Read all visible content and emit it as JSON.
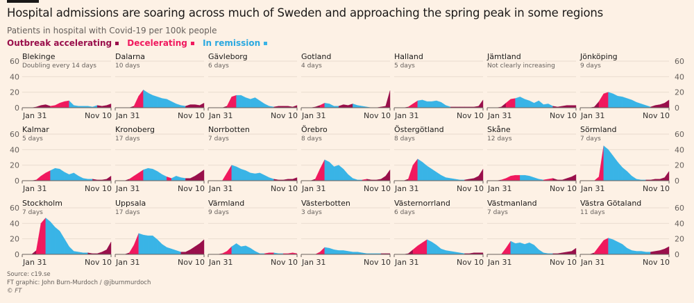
{
  "title": "Hospital admissions are soaring across much of Sweden and approaching the spring peak in some regions",
  "subtitle": "Patients in hospital with Covid-19 per 100k people",
  "legend": [
    {
      "label": "Outbreak accelerating",
      "key": "a",
      "color": "#990f4b"
    },
    {
      "label": "Decelerating",
      "key": "d",
      "color": "#f0195e"
    },
    {
      "label": "In remission",
      "key": "r",
      "color": "#39b4e6"
    }
  ],
  "footer": {
    "source": "Source: c19.se",
    "credit": "FT graphic: John Burn-Murdoch / @jburnmurdoch",
    "copyright": "© FT"
  },
  "chart_data": {
    "type": "area",
    "small_multiples": true,
    "ylim": [
      0,
      60
    ],
    "yticks": [
      "0",
      "20",
      "40",
      "60"
    ],
    "xtick_labels": [
      "Jan 31",
      "Nov 10"
    ],
    "dates": [
      "2020-01-31",
      "2020-02-15",
      "2020-03-01",
      "2020-03-16",
      "2020-03-31",
      "2020-04-15",
      "2020-04-30",
      "2020-05-15",
      "2020-05-30",
      "2020-06-14",
      "2020-06-29",
      "2020-07-14",
      "2020-07-29",
      "2020-08-13",
      "2020-08-28",
      "2020-09-12",
      "2020-09-27",
      "2020-10-12",
      "2020-10-27",
      "2020-11-10"
    ],
    "grid": true,
    "phase_key": {
      "a": "Outbreak accelerating",
      "d": "Decelerating",
      "r": "In remission"
    },
    "panels": [
      {
        "name": "Blekinge",
        "note": "Doubling every 14 days",
        "values": [
          0,
          0,
          0,
          1,
          3,
          4,
          2,
          3,
          6,
          8,
          9,
          3,
          2,
          2,
          2,
          1,
          3,
          2,
          3,
          5
        ],
        "phases": "aaaaaaaddddrrrrrraaa"
      },
      {
        "name": "Dalarna",
        "note": "10 days",
        "values": [
          0,
          0,
          0,
          0,
          2,
          15,
          23,
          19,
          16,
          14,
          12,
          11,
          8,
          5,
          3,
          2,
          4,
          4,
          3,
          6
        ],
        "phases": "aaaaaddrrrrrrrrraaaa"
      },
      {
        "name": "Gävleborg",
        "note": "6 days",
        "values": [
          0,
          0,
          0,
          0,
          2,
          14,
          16,
          16,
          13,
          11,
          13,
          9,
          5,
          2,
          1,
          2,
          2,
          2,
          1,
          3
        ],
        "phases": "aaaaaddrrrrrrrraaaaa"
      },
      {
        "name": "Gotland",
        "note": "4 days",
        "values": [
          0,
          0,
          0,
          1,
          3,
          6,
          5,
          2,
          2,
          4,
          3,
          5,
          3,
          2,
          1,
          0,
          0,
          1,
          2,
          22
        ],
        "phases": "aaaaadrrraaarrrraaaa"
      },
      {
        "name": "Halland",
        "note": "5 days",
        "values": [
          0,
          0,
          0,
          1,
          5,
          9,
          10,
          8,
          8,
          9,
          7,
          3,
          1,
          1,
          1,
          1,
          1,
          1,
          2,
          10
        ],
        "phases": "aaaaddrrrrrrraaaaaaa"
      },
      {
        "name": "Jämtland",
        "note": "Not clearly increasing",
        "values": [
          0,
          0,
          0,
          1,
          6,
          11,
          12,
          14,
          11,
          9,
          6,
          9,
          4,
          5,
          2,
          1,
          2,
          3,
          3,
          3
        ],
        "phases": "aaaaaddrrrrrrrraaaaa"
      },
      {
        "name": "Jönköping",
        "note": "9 days",
        "values": [
          0,
          0,
          0,
          1,
          8,
          18,
          20,
          18,
          15,
          14,
          12,
          10,
          7,
          5,
          3,
          1,
          3,
          4,
          6,
          10
        ],
        "phases": "aaaaaddrrrrrrrrraaaa"
      },
      {
        "name": "Kalmar",
        "note": "5 days",
        "values": [
          0,
          0,
          0,
          1,
          6,
          10,
          13,
          16,
          15,
          11,
          8,
          10,
          6,
          3,
          2,
          2,
          1,
          1,
          2,
          6
        ],
        "phases": "aaaadddrrrrrrrrraaaa"
      },
      {
        "name": "Kronoberg",
        "note": "17 days",
        "values": [
          0,
          0,
          0,
          2,
          6,
          10,
          14,
          16,
          15,
          12,
          8,
          5,
          3,
          6,
          4,
          3,
          3,
          6,
          10,
          14
        ],
        "phases": "aaaadddrrrrrdrrraaaa"
      },
      {
        "name": "Norrbotten",
        "note": "7 days",
        "values": [
          0,
          0,
          0,
          0,
          10,
          20,
          18,
          15,
          13,
          10,
          9,
          10,
          7,
          4,
          2,
          1,
          1,
          2,
          2,
          4
        ],
        "phases": "aaaaddrrrrrrrrraaaaa"
      },
      {
        "name": "Örebro",
        "note": "8 days",
        "values": [
          0,
          0,
          0,
          2,
          15,
          27,
          24,
          18,
          20,
          15,
          8,
          3,
          1,
          1,
          2,
          1,
          1,
          2,
          6,
          14
        ],
        "phases": "aaaaddrrrrrrrrdaaaaa"
      },
      {
        "name": "Östergötland",
        "note": "8 days",
        "values": [
          0,
          0,
          0,
          2,
          20,
          28,
          24,
          19,
          15,
          11,
          7,
          4,
          3,
          2,
          1,
          1,
          2,
          3,
          6,
          15
        ],
        "phases": "aaaaddrrrrrrrrrraaaa"
      },
      {
        "name": "Skåne",
        "note": "12 days",
        "values": [
          0,
          0,
          0,
          1,
          3,
          6,
          7,
          7,
          7,
          6,
          4,
          2,
          1,
          2,
          3,
          1,
          1,
          3,
          5,
          8
        ],
        "phases": "aaaaddddrrrrrddaaaaa"
      },
      {
        "name": "Sörmland",
        "note": "7 days",
        "values": [
          0,
          0,
          0,
          0,
          5,
          45,
          40,
          32,
          24,
          17,
          12,
          6,
          2,
          1,
          1,
          1,
          2,
          2,
          4,
          12
        ],
        "phases": "aaaaddrrrrrrrrraaaaa"
      },
      {
        "name": "Stockholm",
        "note": "7 days",
        "values": [
          0,
          0,
          0,
          5,
          40,
          47,
          42,
          35,
          30,
          20,
          10,
          4,
          3,
          2,
          2,
          1,
          1,
          3,
          6,
          16
        ],
        "phases": "aaaaddrrrrrrrrraaaaa"
      },
      {
        "name": "Uppsala",
        "note": "17 days",
        "values": [
          0,
          0,
          0,
          2,
          12,
          27,
          25,
          24,
          24,
          19,
          13,
          9,
          7,
          5,
          3,
          3,
          6,
          10,
          14,
          19
        ],
        "phases": "aaaaddrrrrrrrrraaaaa"
      },
      {
        "name": "Värmland",
        "note": "9 days",
        "values": [
          0,
          0,
          0,
          1,
          4,
          10,
          14,
          10,
          11,
          8,
          4,
          1,
          1,
          2,
          2,
          1,
          1,
          1,
          2,
          1
        ],
        "phases": "aaaaddrrrrrrrddrrddd"
      },
      {
        "name": "Västerbotten",
        "note": "3 days",
        "values": [
          0,
          0,
          0,
          0,
          3,
          9,
          8,
          6,
          5,
          5,
          4,
          3,
          3,
          2,
          1,
          1,
          1,
          1,
          1,
          1
        ],
        "phases": "aaaaddrrrrrrrrrrrraa"
      },
      {
        "name": "Västernorrland",
        "note": "6 days",
        "values": [
          0,
          0,
          0,
          1,
          6,
          11,
          15,
          19,
          16,
          12,
          7,
          5,
          4,
          3,
          2,
          1,
          1,
          2,
          2,
          2
        ],
        "phases": "aaaaadddrrrrrrrraaaa"
      },
      {
        "name": "Västmanland",
        "note": "7 days",
        "values": [
          0,
          0,
          0,
          0,
          8,
          17,
          14,
          15,
          13,
          15,
          12,
          6,
          2,
          1,
          1,
          1,
          2,
          3,
          4,
          8
        ],
        "phases": "aaaaddrrrrrrrrraaaaa"
      },
      {
        "name": "Västra Götaland",
        "note": "11 days",
        "values": [
          0,
          0,
          0,
          2,
          10,
          18,
          21,
          19,
          16,
          13,
          8,
          5,
          4,
          4,
          3,
          3,
          4,
          5,
          7,
          10
        ],
        "phases": "aaaadddrrrrrrrrraaaa"
      }
    ]
  }
}
